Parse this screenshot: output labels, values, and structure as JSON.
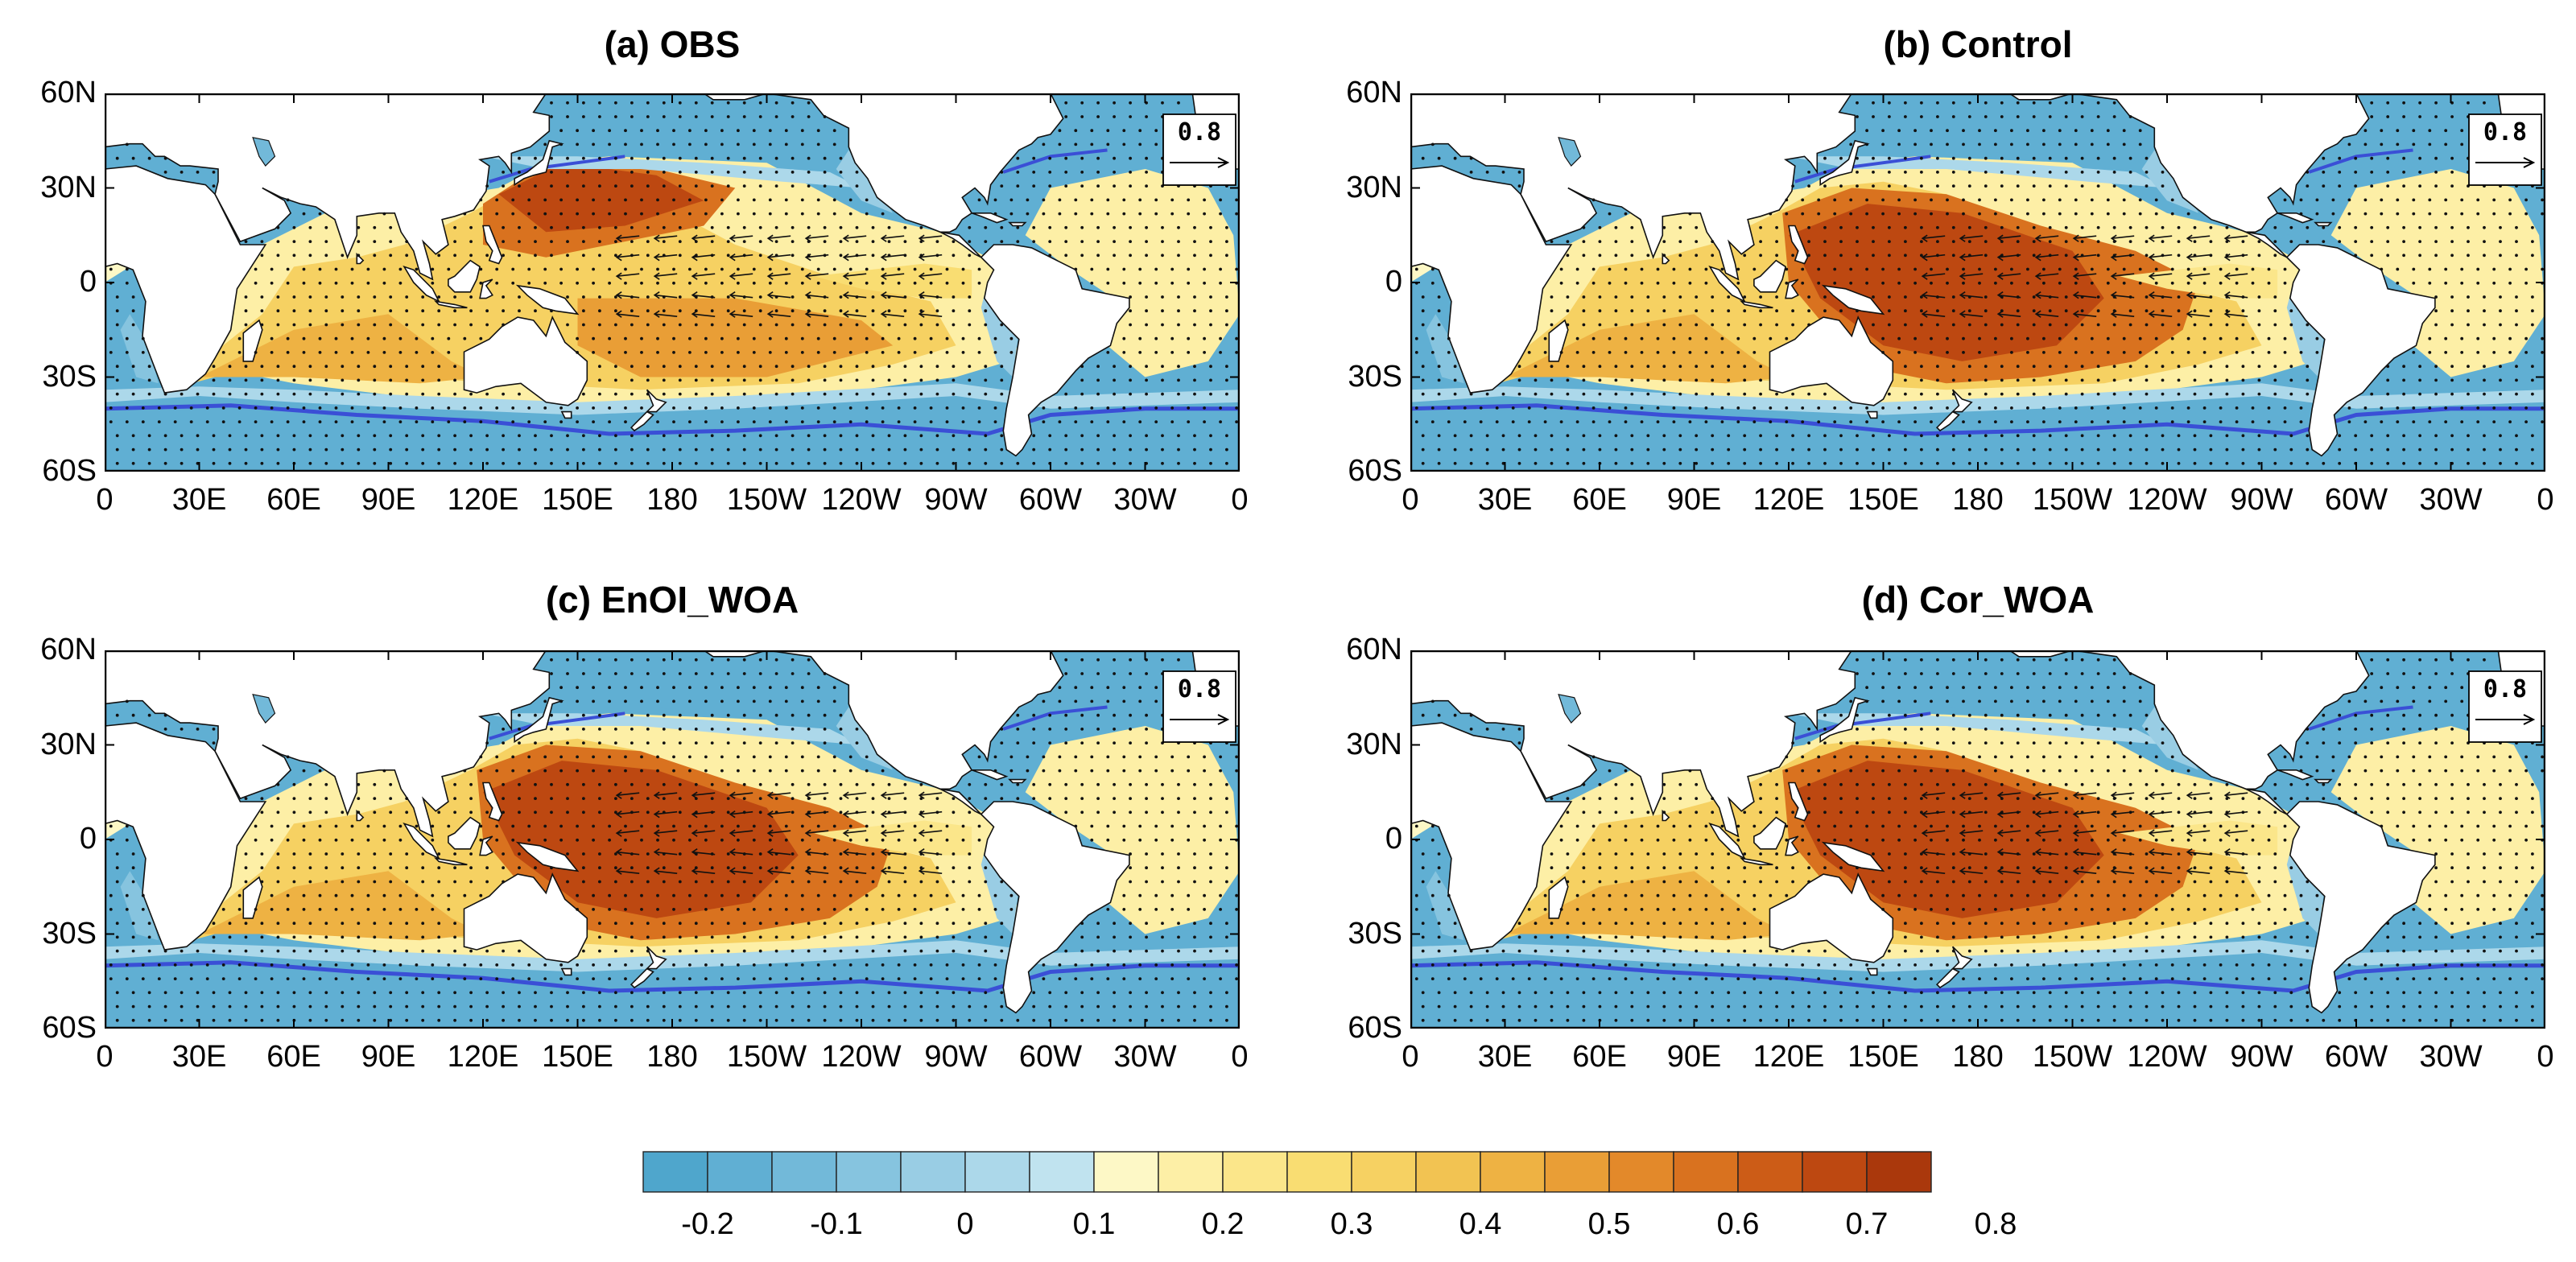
{
  "panels": [
    {
      "title": "(a) OBS"
    },
    {
      "title": "(b) Control"
    },
    {
      "title": "(c) EnOI_WOA"
    },
    {
      "title": "(d) Cor_WOA"
    }
  ],
  "lat_ticks": [
    "60N",
    "30N",
    "0",
    "30S",
    "60S"
  ],
  "lon_ticks": [
    "0",
    "30E",
    "60E",
    "90E",
    "120E",
    "150E",
    "180",
    "150W",
    "120W",
    "90W",
    "60W",
    "30W",
    "0"
  ],
  "reference_vector": "0.8",
  "colorbar": {
    "labels": [
      "-0.2",
      "-0.1",
      "0",
      "0.1",
      "0.2",
      "0.3",
      "0.4",
      "0.5",
      "0.6",
      "0.7",
      "0.8"
    ],
    "colors": [
      "#4fa6cc",
      "#60afd3",
      "#72b9d9",
      "#86c4df",
      "#99cde4",
      "#acd8ea",
      "#c0e3ef",
      "#fdf8c6",
      "#fdefa6",
      "#fbe68a",
      "#f9dd72",
      "#f6d162",
      "#f2c352",
      "#eeb243",
      "#e99e36",
      "#e3892a",
      "#d9721f",
      "#cc5c17",
      "#bd4811",
      "#aa380c"
    ]
  }
}
